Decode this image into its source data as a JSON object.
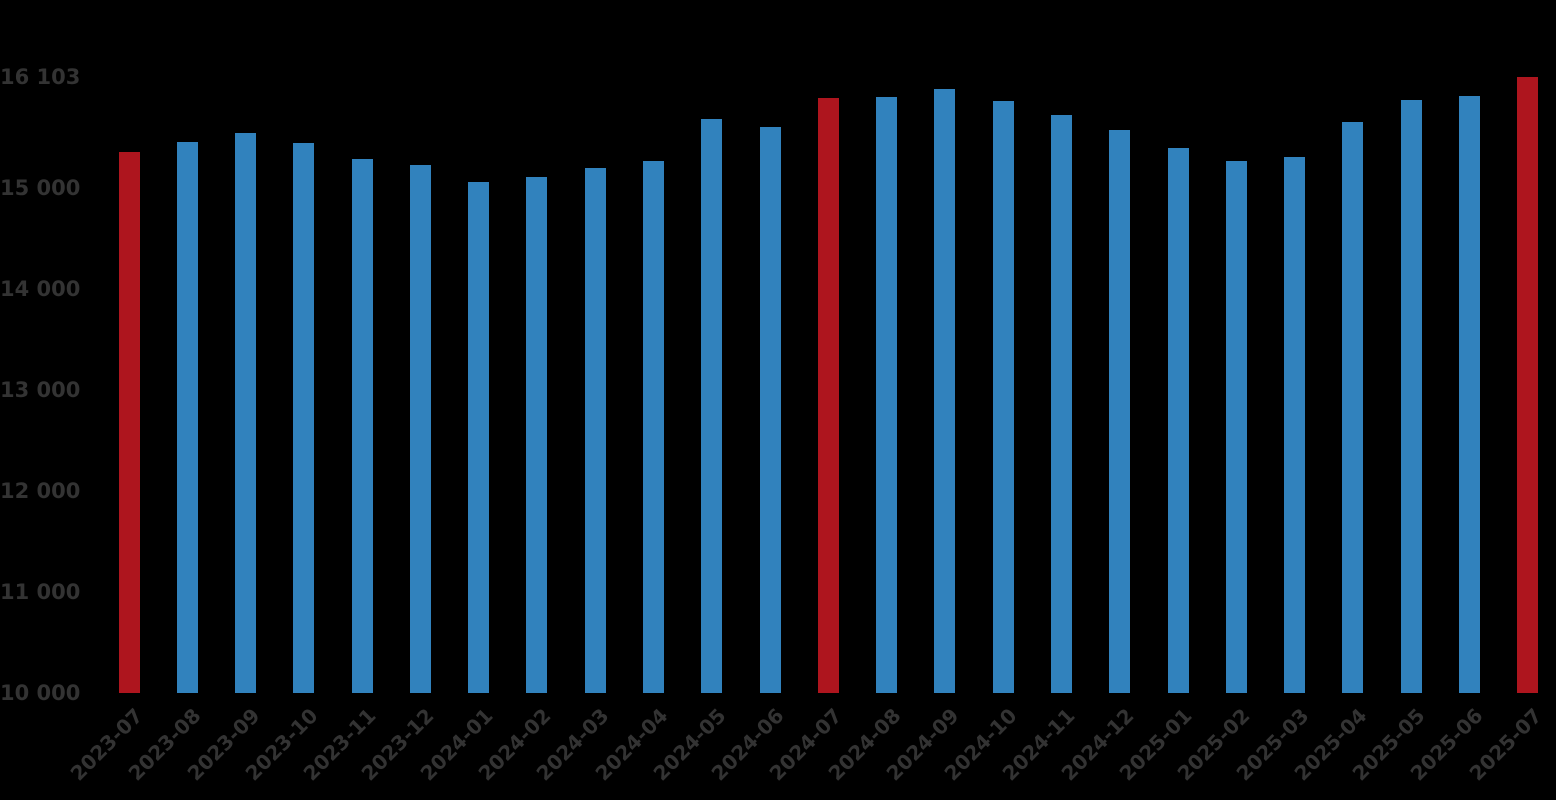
{
  "chart_data": {
    "type": "bar",
    "categories": [
      "2023-07",
      "2023-08",
      "2023-09",
      "2023-10",
      "2023-11",
      "2023-12",
      "2024-01",
      "2024-02",
      "2024-03",
      "2024-04",
      "2024-05",
      "2024-06",
      "2024-07",
      "2024-08",
      "2024-09",
      "2024-10",
      "2024-11",
      "2024-12",
      "2025-01",
      "2025-02",
      "2025-03",
      "2025-04",
      "2025-05",
      "2025-06",
      "2025-07"
    ],
    "values": [
      15360,
      15460,
      15540,
      15450,
      15290,
      15230,
      15060,
      15110,
      15200,
      15270,
      15680,
      15600,
      15890,
      15900,
      15980,
      15860,
      15720,
      15570,
      15400,
      15270,
      15310,
      15650,
      15870,
      15910,
      16103
    ],
    "highlighted_categories": [
      "2023-07",
      "2024-07",
      "2025-07"
    ],
    "title": "",
    "xlabel": "",
    "ylabel": "",
    "ylim": [
      10000,
      16103
    ],
    "yticks": [
      {
        "value": 10000,
        "label": "10 000"
      },
      {
        "value": 11000,
        "label": "11 000"
      },
      {
        "value": 12000,
        "label": "12 000"
      },
      {
        "value": 13000,
        "label": "13 000"
      },
      {
        "value": 14000,
        "label": "14 000"
      },
      {
        "value": 15000,
        "label": "15 000"
      },
      {
        "value": 16103,
        "label": "16 103"
      }
    ],
    "grid": false,
    "legend": null,
    "colors": {
      "bar": "#3182BD",
      "highlight": "#AE151E",
      "background": "#000000",
      "tick_text": "#333333"
    }
  }
}
